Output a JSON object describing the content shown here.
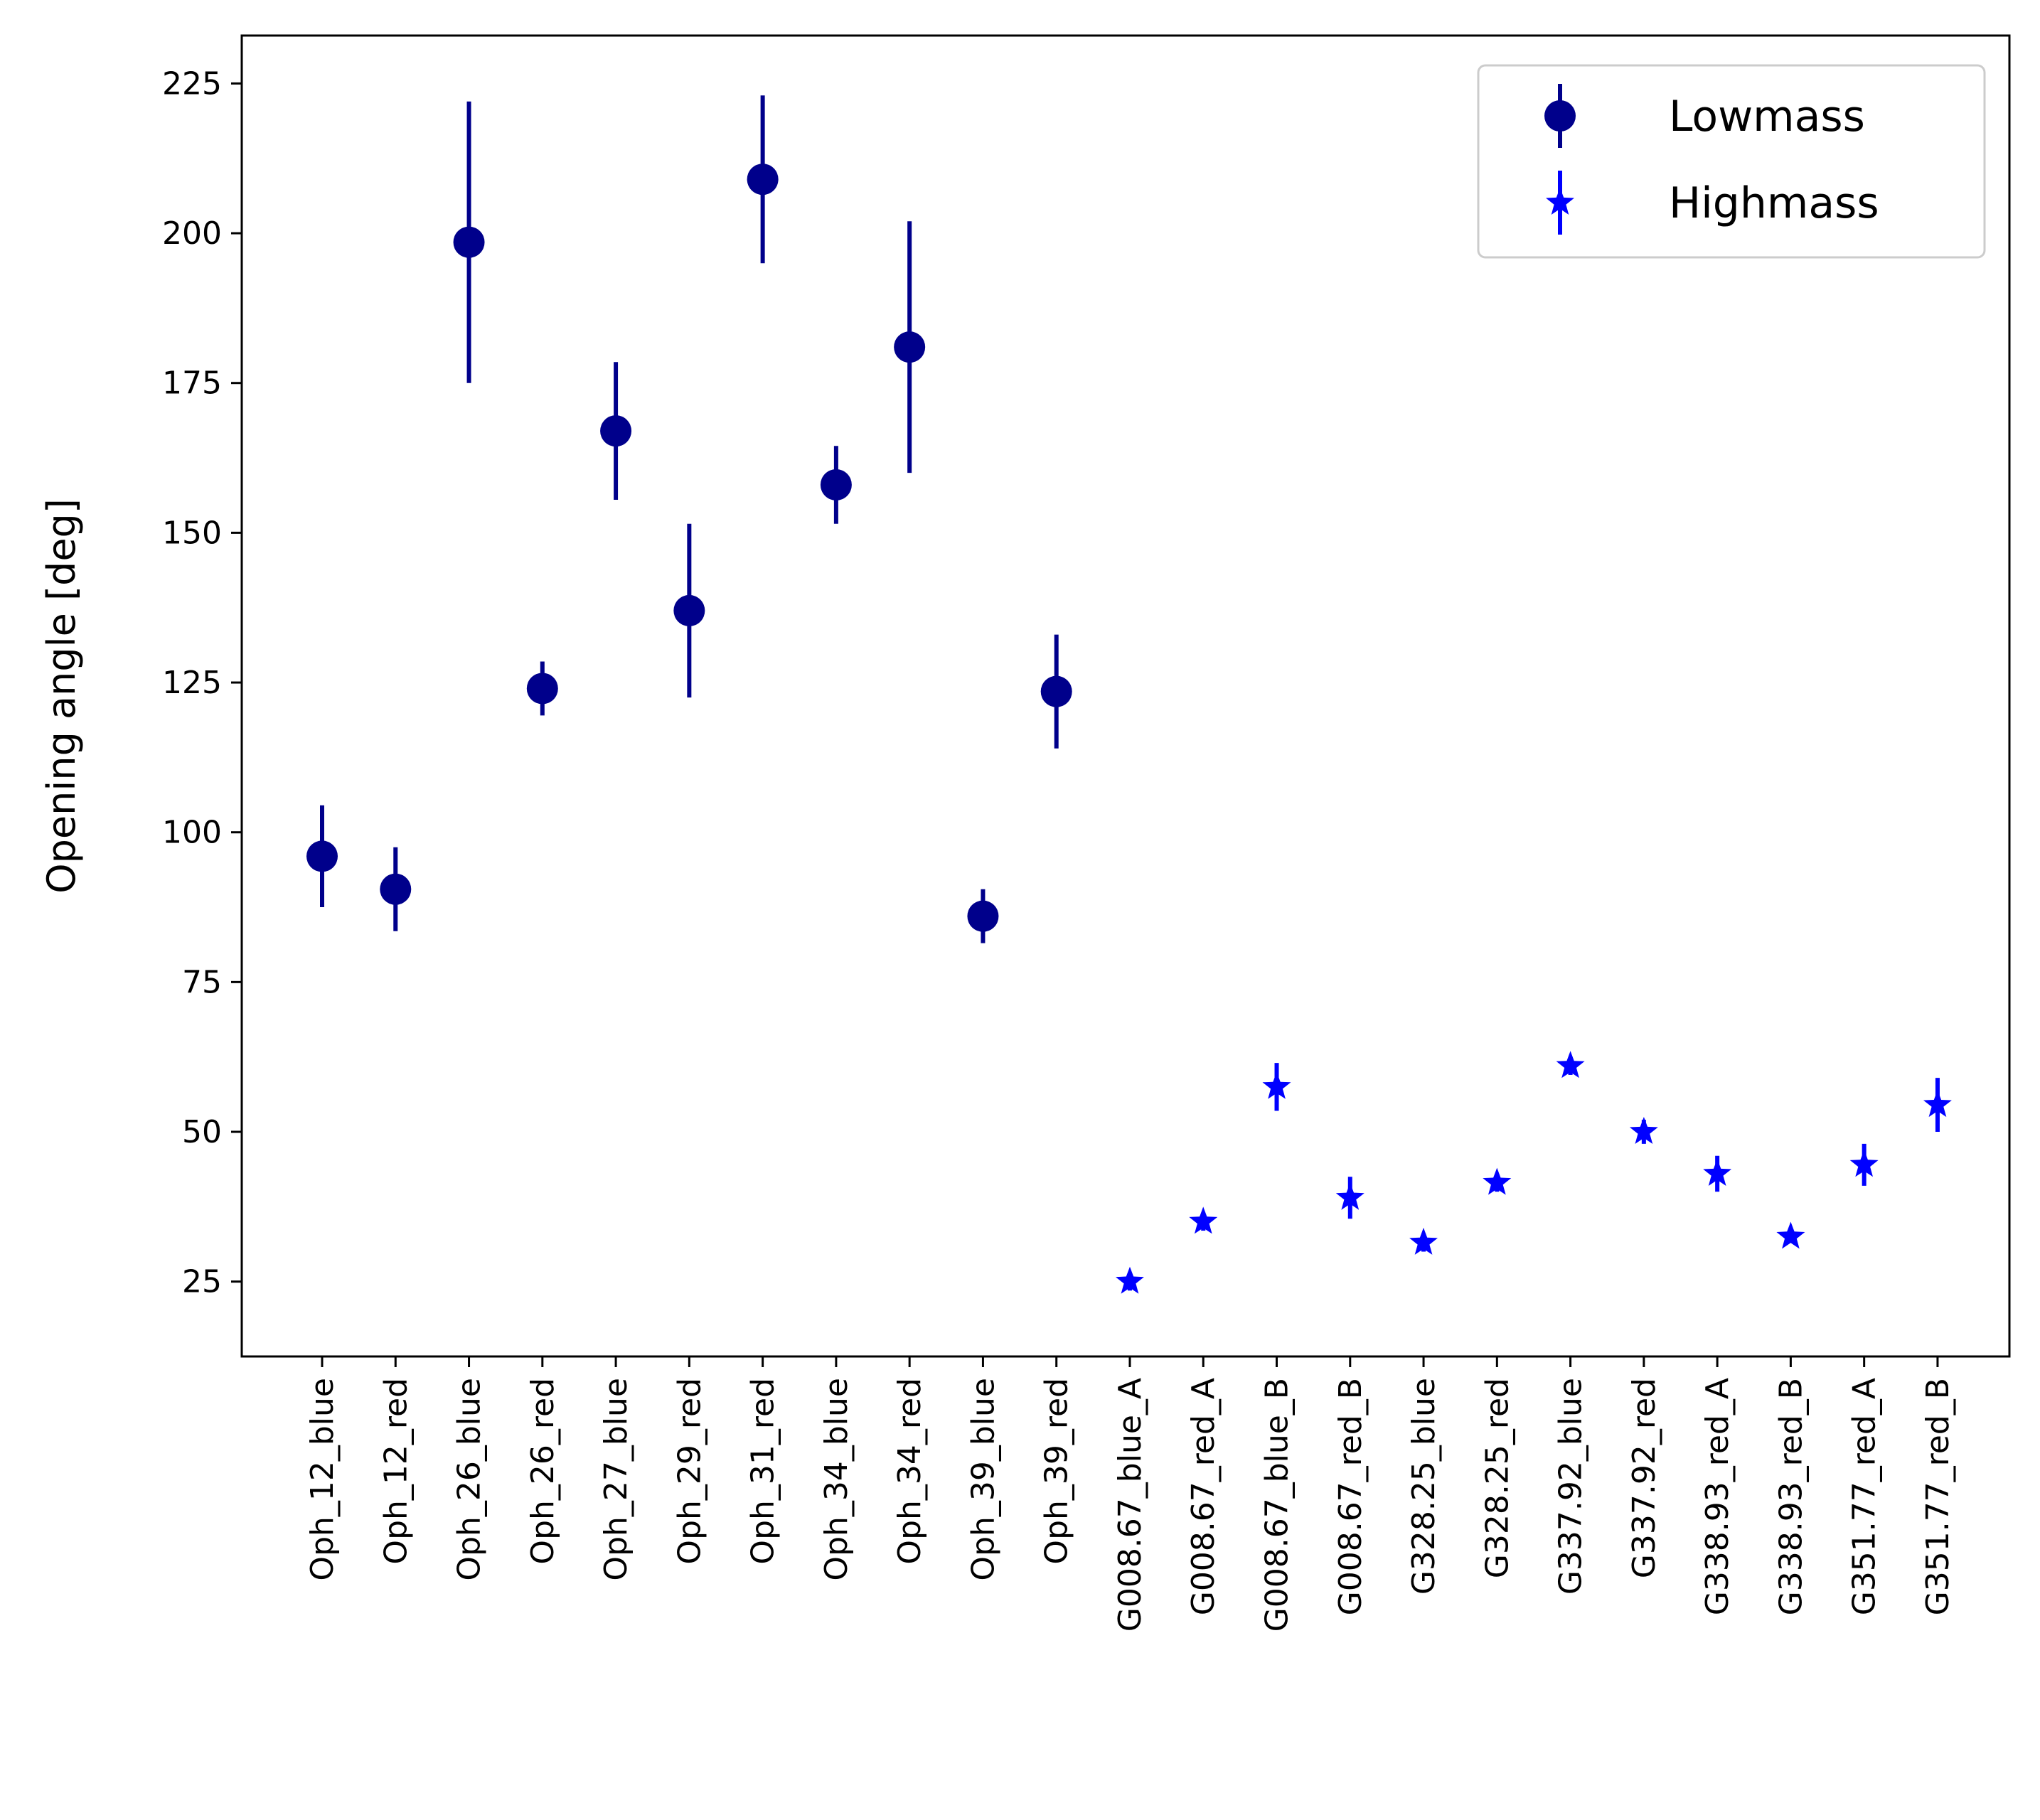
{
  "chart_data": {
    "type": "scatter",
    "xlabel": "",
    "ylabel": "Opening angle [deg]",
    "ylim": [
      12.5,
      233
    ],
    "yticks": [
      25,
      50,
      75,
      100,
      125,
      150,
      175,
      200,
      225
    ],
    "categories": [
      "Oph_12_blue",
      "Oph_12_red",
      "Oph_26_blue",
      "Oph_26_red",
      "Oph_27_blue",
      "Oph_29_red",
      "Oph_31_red",
      "Oph_34_blue",
      "Oph_34_red",
      "Oph_39_blue",
      "Oph_39_red",
      "G008.67_blue_A",
      "G008.67_red_A",
      "G008.67_blue_B",
      "G008.67_red_B",
      "G328.25_blue",
      "G328.25_red",
      "G337.92_blue",
      "G337.92_red",
      "G338.93_red_A",
      "G338.93_red_B",
      "G351.77_red_A",
      "G351.77_red_B"
    ],
    "legend_position": "top-right",
    "grid": false,
    "series": [
      {
        "name": "Lowmass",
        "marker": "circle",
        "color": "#00008b",
        "points": [
          {
            "x": "Oph_12_blue",
            "y": 96,
            "err": 8.5
          },
          {
            "x": "Oph_12_red",
            "y": 90.5,
            "err": 7
          },
          {
            "x": "Oph_26_blue",
            "y": 198.5,
            "err": 23.5
          },
          {
            "x": "Oph_26_red",
            "y": 124,
            "err": 4.5
          },
          {
            "x": "Oph_27_blue",
            "y": 167,
            "err": 11.5
          },
          {
            "x": "Oph_29_red",
            "y": 137,
            "err": 14.5
          },
          {
            "x": "Oph_31_red",
            "y": 209,
            "err": 14
          },
          {
            "x": "Oph_34_blue",
            "y": 158,
            "err": 6.5
          },
          {
            "x": "Oph_34_red",
            "y": 181,
            "err": 21
          },
          {
            "x": "Oph_39_blue",
            "y": 86,
            "err": 4.5
          },
          {
            "x": "Oph_39_red",
            "y": 123.5,
            "err": 9.5
          }
        ]
      },
      {
        "name": "Highmass",
        "marker": "star",
        "color": "#0000ff",
        "points": [
          {
            "x": "G008.67_blue_A",
            "y": 25,
            "err": 1.5
          },
          {
            "x": "G008.67_red_A",
            "y": 35,
            "err": 1.5
          },
          {
            "x": "G008.67_blue_B",
            "y": 57.5,
            "err": 4
          },
          {
            "x": "G008.67_red_B",
            "y": 39,
            "err": 3.5
          },
          {
            "x": "G328.25_blue",
            "y": 31.5,
            "err": 1.5
          },
          {
            "x": "G328.25_red",
            "y": 41.5,
            "err": 1.5
          },
          {
            "x": "G337.92_blue",
            "y": 61,
            "err": 1.5
          },
          {
            "x": "G337.92_red",
            "y": 50,
            "err": 2
          },
          {
            "x": "G338.93_red_A",
            "y": 43,
            "err": 3
          },
          {
            "x": "G338.93_red_B",
            "y": 32.5,
            "err": 1
          },
          {
            "x": "G351.77_red_A",
            "y": 44.5,
            "err": 3.5
          },
          {
            "x": "G351.77_red_B",
            "y": 54.5,
            "err": 4.5
          }
        ]
      }
    ]
  }
}
